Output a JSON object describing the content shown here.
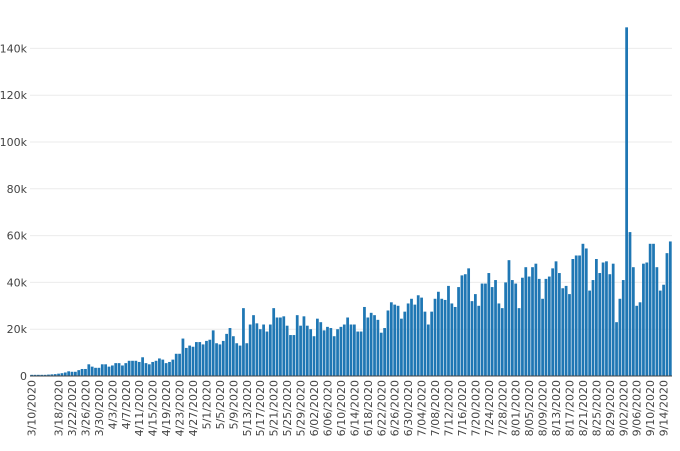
{
  "chart_data": {
    "type": "bar",
    "title": "",
    "xlabel": "",
    "ylabel": "",
    "ylim": [
      0,
      150000
    ],
    "y_ticks": [
      {
        "value": 0,
        "label": "0"
      },
      {
        "value": 20000,
        "label": "20k"
      },
      {
        "value": 40000,
        "label": "40k"
      },
      {
        "value": 60000,
        "label": "60k"
      },
      {
        "value": 80000,
        "label": "80k"
      },
      {
        "value": 100000,
        "label": "100k"
      },
      {
        "value": 120000,
        "label": "120k"
      },
      {
        "value": 140000,
        "label": "140k"
      }
    ],
    "x_tick_labels": [
      "3/10/2020",
      "3/18/2020",
      "3/22/2020",
      "3/26/2020",
      "3/30/2020",
      "4/3/2020",
      "4/7/2020",
      "4/11/2020",
      "4/15/2020",
      "4/19/2020",
      "4/23/2020",
      "4/27/2020",
      "5/1/2020",
      "5/5/2020",
      "5/9/2020",
      "5/13/2020",
      "5/17/2020",
      "5/21/2020",
      "5/25/2020",
      "5/29/2020",
      "6/02/2020",
      "6/06/2020",
      "6/10/2020",
      "6/14/2020",
      "6/18/2020",
      "6/22/2020",
      "6/26/2020",
      "6/30/2020",
      "7/04/2020",
      "7/08/2020",
      "7/12/2020",
      "7/16/2020",
      "7/20/2020",
      "7/24/2020",
      "7/28/2020",
      "8/01/2020",
      "8/05/2020",
      "8/09/2020",
      "8/13/2020",
      "8/17/2020",
      "8/21/2020",
      "8/25/2020",
      "8/29/2020",
      "9/02/2020",
      "9/06/2020",
      "9/10/2020",
      "9/14/2020"
    ],
    "grid": true,
    "legend": "none",
    "bar_color": "#1f77b4",
    "grid_color": "#ebebeb",
    "axis_color": "#444444",
    "start_date": "2020-03-10",
    "values": [
      500,
      500,
      500,
      500,
      500,
      600,
      700,
      800,
      1000,
      1200,
      1500,
      2000,
      1800,
      1800,
      2500,
      3000,
      3000,
      5000,
      4000,
      3500,
      3500,
      5000,
      5000,
      4000,
      4500,
      5500,
      5500,
      4500,
      5500,
      6500,
      6500,
      6500,
      6000,
      8000,
      5500,
      5000,
      6000,
      6500,
      7500,
      7000,
      5500,
      6000,
      7000,
      9500,
      9500,
      16000,
      12000,
      13000,
      12500,
      14500,
      14500,
      13500,
      15000,
      15500,
      19500,
      14000,
      13500,
      15000,
      18000,
      20500,
      17000,
      14000,
      13000,
      29000,
      14000,
      22000,
      26000,
      22500,
      20000,
      22000,
      19000,
      22000,
      29000,
      25000,
      25000,
      25500,
      21500,
      17500,
      17500,
      26000,
      21500,
      25500,
      21500,
      20000,
      17000,
      24500,
      23000,
      19500,
      21000,
      20500,
      17000,
      20000,
      21000,
      22000,
      25000,
      22000,
      22000,
      19000,
      19000,
      29500,
      25000,
      27000,
      26000,
      24000,
      18500,
      20500,
      28000,
      31500,
      30500,
      30000,
      24500,
      27500,
      31000,
      33000,
      30500,
      34500,
      33500,
      27500,
      22000,
      27500,
      33000,
      36000,
      33000,
      32500,
      38500,
      31000,
      29500,
      38000,
      43000,
      43500,
      46000,
      32000,
      35000,
      30000,
      39500,
      39500,
      44000,
      38000,
      41000,
      31000,
      29000,
      40000,
      49500,
      41000,
      39500,
      29000,
      42000,
      46500,
      42500,
      46500,
      48000,
      41500,
      33000,
      41500,
      42500,
      46000,
      49000,
      44000,
      37500,
      38500,
      35000,
      50000,
      51500,
      51500,
      56500,
      54500,
      36500,
      41000,
      50000,
      44000,
      48500,
      49000,
      43500,
      48000,
      23000,
      33000,
      41000,
      149000,
      61500,
      46500,
      30000,
      31500,
      48000,
      48500,
      56500,
      56500,
      46500,
      36500,
      39000,
      52500,
      57500
    ]
  }
}
